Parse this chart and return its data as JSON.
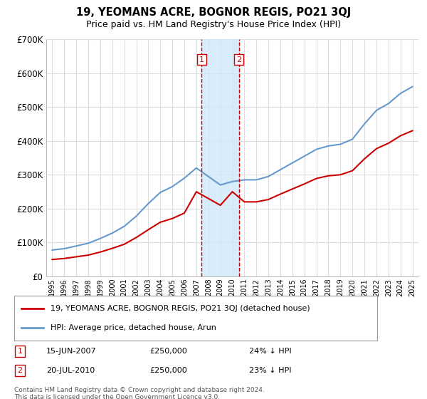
{
  "title": "19, YEOMANS ACRE, BOGNOR REGIS, PO21 3QJ",
  "subtitle": "Price paid vs. HM Land Registry's House Price Index (HPI)",
  "legend_line1": "19, YEOMANS ACRE, BOGNOR REGIS, PO21 3QJ (detached house)",
  "legend_line2": "HPI: Average price, detached house, Arun",
  "transaction1_date": "15-JUN-2007",
  "transaction1_price": "£250,000",
  "transaction1_hpi": "24% ↓ HPI",
  "transaction1_year": 2007.45,
  "transaction2_date": "20-JUL-2010",
  "transaction2_price": "£250,000",
  "transaction2_hpi": "23% ↓ HPI",
  "transaction2_year": 2010.55,
  "footer": "Contains HM Land Registry data © Crown copyright and database right 2024.\nThis data is licensed under the Open Government Licence v3.0.",
  "red_color": "#cc0000",
  "blue_color": "#6699cc",
  "shade_color": "#d0e8f8",
  "marker_box_color": "#cc0000",
  "background_color": "#ffffff",
  "grid_color": "#dddddd",
  "years_hpi": [
    1995,
    1996,
    1997,
    1998,
    1999,
    2000,
    2001,
    2002,
    2003,
    2004,
    2005,
    2006,
    2007,
    2008,
    2009,
    2010,
    2011,
    2012,
    2013,
    2014,
    2015,
    2016,
    2017,
    2018,
    2019,
    2020,
    2021,
    2022,
    2023,
    2024,
    2025
  ],
  "hpi_values": [
    78000,
    82000,
    90000,
    98000,
    112000,
    128000,
    148000,
    178000,
    215000,
    248000,
    265000,
    290000,
    320000,
    295000,
    270000,
    280000,
    285000,
    285000,
    295000,
    315000,
    335000,
    355000,
    375000,
    385000,
    390000,
    405000,
    450000,
    490000,
    510000,
    540000,
    560000
  ],
  "years_red": [
    1995,
    1996,
    1997,
    1998,
    1999,
    2000,
    2001,
    2002,
    2003,
    2004,
    2005,
    2006,
    2007,
    2008,
    2009,
    2010,
    2011,
    2012,
    2013,
    2014,
    2015,
    2016,
    2017,
    2018,
    2019,
    2020,
    2021,
    2022,
    2023,
    2024,
    2025
  ],
  "red_values": [
    50000,
    53000,
    58000,
    63000,
    72000,
    83000,
    95000,
    115000,
    138000,
    160000,
    171000,
    187000,
    250000,
    230000,
    210000,
    250000,
    220000,
    220000,
    227000,
    243000,
    258000,
    273000,
    289000,
    297000,
    300000,
    312000,
    347000,
    377000,
    393000,
    415000,
    430000
  ],
  "yticks": [
    0,
    100000,
    200000,
    300000,
    400000,
    500000,
    600000,
    700000
  ],
  "ytick_labels": [
    "£0",
    "£100K",
    "£200K",
    "£300K",
    "£400K",
    "£500K",
    "£600K",
    "£700K"
  ],
  "xlim": [
    1994.5,
    2025.5
  ],
  "ylim": [
    0,
    700000
  ]
}
